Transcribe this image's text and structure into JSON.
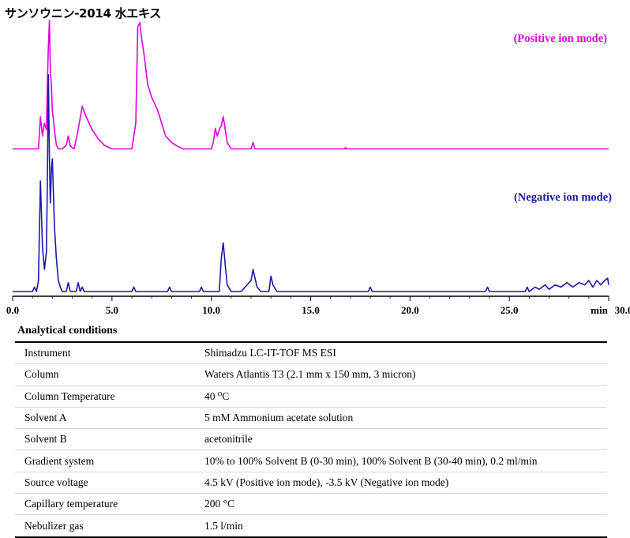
{
  "chart_data": {
    "type": "line",
    "title": "サンソウニン-2014 水エキス",
    "xlabel": "min",
    "xlim": [
      0,
      30
    ],
    "x_ticks": [
      "0.0",
      "5.0",
      "10.0",
      "15.0",
      "20.0",
      "25.0",
      "30.0"
    ],
    "grid": false,
    "series": [
      {
        "name": "(Positive ion mode)",
        "color": "#dd00dd",
        "x": [
          0,
          1.3,
          1.4,
          1.5,
          1.6,
          1.7,
          1.75,
          1.8,
          1.85,
          1.9,
          1.95,
          2.0,
          2.1,
          2.2,
          2.3,
          2.5,
          2.7,
          2.8,
          2.9,
          3.1,
          3.3,
          3.5,
          3.7,
          4.0,
          4.3,
          4.6,
          5.0,
          5.5,
          6.0,
          6.2,
          6.3,
          6.4,
          6.5,
          6.6,
          6.8,
          7.0,
          7.3,
          7.5,
          7.7,
          8.0,
          8.3,
          8.6,
          9.0,
          9.5,
          10.0,
          10.1,
          10.2,
          10.3,
          10.4,
          10.5,
          10.6,
          10.7,
          10.8,
          11.0,
          11.5,
          12.0,
          12.1,
          12.2,
          12.5,
          16.7,
          16.75,
          16.8,
          30.0
        ],
        "y": [
          0,
          0,
          0.25,
          0.1,
          0.2,
          0.15,
          0.5,
          0.8,
          1.0,
          0.6,
          0.5,
          0.3,
          0.15,
          0.03,
          0,
          0,
          0.03,
          0.1,
          0.02,
          0,
          0.15,
          0.33,
          0.25,
          0.15,
          0.08,
          0.03,
          0,
          0,
          0,
          0.2,
          0.95,
          0.98,
          0.85,
          0.75,
          0.5,
          0.4,
          0.3,
          0.2,
          0.1,
          0.05,
          0.02,
          0,
          0,
          0,
          0,
          0.05,
          0.16,
          0.1,
          0.15,
          0.18,
          0.25,
          0.15,
          0.05,
          0,
          0,
          0,
          0.05,
          0,
          0,
          0,
          0.01,
          0,
          0
        ]
      },
      {
        "name": "(Negative ion mode)",
        "color": "#1a1aaa",
        "x": [
          0,
          1.0,
          1.1,
          1.2,
          1.3,
          1.4,
          1.5,
          1.6,
          1.7,
          1.75,
          1.8,
          1.85,
          1.9,
          1.95,
          2.0,
          2.1,
          2.2,
          2.3,
          2.4,
          2.5,
          2.7,
          2.8,
          2.9,
          3.2,
          3.3,
          3.4,
          3.5,
          3.6,
          6.0,
          6.1,
          6.2,
          7.8,
          7.9,
          8.0,
          9.4,
          9.5,
          9.6,
          10.4,
          10.5,
          10.6,
          10.7,
          10.8,
          11.0,
          11.5,
          12.0,
          12.1,
          12.2,
          12.3,
          12.5,
          12.9,
          13.0,
          13.1,
          13.3,
          17.9,
          18.0,
          18.1,
          23.8,
          23.9,
          24.0,
          25.8,
          25.9,
          26.0,
          26.3,
          26.5,
          26.8,
          27.0,
          27.3,
          27.6,
          27.9,
          28.2,
          28.5,
          28.8,
          29.0,
          29.2,
          29.4,
          29.6,
          29.8,
          29.95,
          30.0
        ],
        "y": [
          0,
          0,
          0.02,
          0,
          0.05,
          0.5,
          0.2,
          0.1,
          0.18,
          0.5,
          0.98,
          0.6,
          0.4,
          0.55,
          0.6,
          0.3,
          0.15,
          0.05,
          0.02,
          0,
          0,
          0.04,
          0,
          0,
          0.04,
          0,
          0.02,
          0,
          0,
          0.02,
          0,
          0,
          0.02,
          0,
          0,
          0.02,
          0,
          0,
          0.15,
          0.22,
          0.12,
          0.03,
          0,
          0,
          0.05,
          0.1,
          0.06,
          0.02,
          0,
          0,
          0.07,
          0.03,
          0,
          0,
          0.02,
          0,
          0,
          0.02,
          0,
          0,
          0.02,
          0,
          0.02,
          0.01,
          0.03,
          0.01,
          0.03,
          0.02,
          0.04,
          0.02,
          0.04,
          0.03,
          0.05,
          0.02,
          0.05,
          0.03,
          0.05,
          0.06,
          0.03
        ]
      }
    ]
  },
  "conditions": {
    "title": "Analytical conditions",
    "rows": [
      {
        "label": "Instrument",
        "value": "Shimadzu LC-IT-TOF MS ESI"
      },
      {
        "label": "Column",
        "value": "Waters Atlantis T3 (2.1 mm x 150 mm, 3 micron)"
      },
      {
        "label": "Column Temperature",
        "value": "40 ⁰C"
      },
      {
        "label": "Solvent A",
        "value": "5 mM Ammonium acetate solution"
      },
      {
        "label": "Solvent B",
        "value": "acetonitrile"
      },
      {
        "label": "Gradient system",
        "value": "10% to 100% Solvent B (0-30 min), 100% Solvent B (30-40 min), 0.2 ml/min"
      },
      {
        "label": "Source voltage",
        "value": "4.5 kV (Positive ion mode), -3.5 kV (Negative ion mode)"
      },
      {
        "label": "Capillary temperature",
        "value": "200 °C"
      },
      {
        "label": "Nebulizer gas",
        "value": "1.5 l/min"
      }
    ]
  }
}
